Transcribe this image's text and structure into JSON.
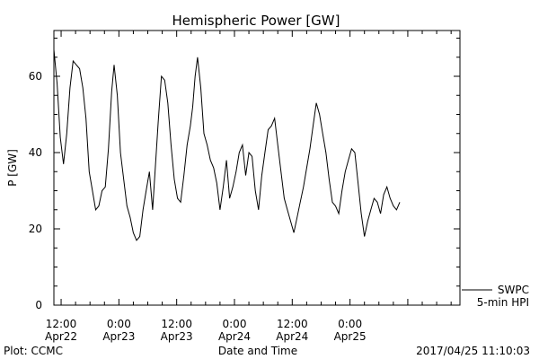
{
  "chart_data": {
    "type": "line",
    "title": "Hemispheric Power [GW]",
    "xlabel": "Date and Time",
    "ylabel": "P [GW]",
    "ylim": [
      0,
      72
    ],
    "yticks": [
      0,
      20,
      40,
      60
    ],
    "xlim": [
      "2017-04-22T10:30",
      "2017-04-25T22:50"
    ],
    "x_ticks": [
      {
        "time": "2017-04-22T12:00",
        "label1": "12:00",
        "label2": "Apr22"
      },
      {
        "time": "2017-04-23T00:00",
        "label1": "0:00",
        "label2": "Apr23"
      },
      {
        "time": "2017-04-23T12:00",
        "label1": "12:00",
        "label2": "Apr23"
      },
      {
        "time": "2017-04-24T00:00",
        "label1": "0:00",
        "label2": "Apr24"
      },
      {
        "time": "2017-04-24T12:00",
        "label1": "12:00",
        "label2": "Apr24"
      },
      {
        "time": "2017-04-25T00:00",
        "label1": "0:00",
        "label2": "Apr25"
      }
    ],
    "grid": false,
    "legend": {
      "position": "bottom-right",
      "line1": "SWPC",
      "line2": "5-min HPI"
    },
    "series": [
      {
        "name": "SWPC",
        "color": "#000000",
        "points": [
          [
            "2017-04-22T10:30",
            67
          ],
          [
            "2017-04-22T11:10",
            58
          ],
          [
            "2017-04-22T11:50",
            44
          ],
          [
            "2017-04-22T12:30",
            37
          ],
          [
            "2017-04-22T13:10",
            45
          ],
          [
            "2017-04-22T13:50",
            57
          ],
          [
            "2017-04-22T14:30",
            64
          ],
          [
            "2017-04-22T15:10",
            63
          ],
          [
            "2017-04-22T15:50",
            62
          ],
          [
            "2017-04-22T16:30",
            57
          ],
          [
            "2017-04-22T17:10",
            49
          ],
          [
            "2017-04-22T17:50",
            35
          ],
          [
            "2017-04-22T18:30",
            30
          ],
          [
            "2017-04-22T19:10",
            25
          ],
          [
            "2017-04-22T19:50",
            26
          ],
          [
            "2017-04-22T20:30",
            30
          ],
          [
            "2017-04-22T21:10",
            31
          ],
          [
            "2017-04-22T21:50",
            41
          ],
          [
            "2017-04-22T22:30",
            56
          ],
          [
            "2017-04-22T23:00",
            63
          ],
          [
            "2017-04-22T23:40",
            55
          ],
          [
            "2017-04-23T00:20",
            40
          ],
          [
            "2017-04-23T01:00",
            33
          ],
          [
            "2017-04-23T01:40",
            26
          ],
          [
            "2017-04-23T02:20",
            23
          ],
          [
            "2017-04-23T03:00",
            19
          ],
          [
            "2017-04-23T03:40",
            17
          ],
          [
            "2017-04-23T04:20",
            18
          ],
          [
            "2017-04-23T05:00",
            25
          ],
          [
            "2017-04-23T05:40",
            30
          ],
          [
            "2017-04-23T06:20",
            35
          ],
          [
            "2017-04-23T07:00",
            25
          ],
          [
            "2017-04-23T07:30",
            35
          ],
          [
            "2017-04-23T08:10",
            48
          ],
          [
            "2017-04-23T08:50",
            60
          ],
          [
            "2017-04-23T09:30",
            59
          ],
          [
            "2017-04-23T10:10",
            53
          ],
          [
            "2017-04-23T10:50",
            42
          ],
          [
            "2017-04-23T11:30",
            33
          ],
          [
            "2017-04-23T12:10",
            28
          ],
          [
            "2017-04-23T12:50",
            27
          ],
          [
            "2017-04-23T13:30",
            34
          ],
          [
            "2017-04-23T14:10",
            42
          ],
          [
            "2017-04-23T14:50",
            47
          ],
          [
            "2017-04-23T15:20",
            52
          ],
          [
            "2017-04-23T15:50",
            60
          ],
          [
            "2017-04-23T16:20",
            65
          ],
          [
            "2017-04-23T17:00",
            57
          ],
          [
            "2017-04-23T17:40",
            45
          ],
          [
            "2017-04-23T18:20",
            42
          ],
          [
            "2017-04-23T19:00",
            38
          ],
          [
            "2017-04-23T19:40",
            36
          ],
          [
            "2017-04-23T20:20",
            32
          ],
          [
            "2017-04-23T21:00",
            25
          ],
          [
            "2017-04-23T21:40",
            31
          ],
          [
            "2017-04-23T22:20",
            38
          ],
          [
            "2017-04-23T23:00",
            28
          ],
          [
            "2017-04-23T23:40",
            31
          ],
          [
            "2017-04-24T00:20",
            35
          ],
          [
            "2017-04-24T01:00",
            40
          ],
          [
            "2017-04-24T01:40",
            42
          ],
          [
            "2017-04-24T02:20",
            34
          ],
          [
            "2017-04-24T03:00",
            40
          ],
          [
            "2017-04-24T03:40",
            39
          ],
          [
            "2017-04-24T04:20",
            30
          ],
          [
            "2017-04-24T05:00",
            25
          ],
          [
            "2017-04-24T05:40",
            34
          ],
          [
            "2017-04-24T06:20",
            40
          ],
          [
            "2017-04-24T07:00",
            46
          ],
          [
            "2017-04-24T07:40",
            47
          ],
          [
            "2017-04-24T08:20",
            49
          ],
          [
            "2017-04-24T09:00",
            42
          ],
          [
            "2017-04-24T09:40",
            35
          ],
          [
            "2017-04-24T10:20",
            28
          ],
          [
            "2017-04-24T11:00",
            25
          ],
          [
            "2017-04-24T11:40",
            22
          ],
          [
            "2017-04-24T12:20",
            19
          ],
          [
            "2017-04-24T13:00",
            23
          ],
          [
            "2017-04-24T13:40",
            27
          ],
          [
            "2017-04-24T14:20",
            31
          ],
          [
            "2017-04-24T15:00",
            36
          ],
          [
            "2017-04-24T15:40",
            41
          ],
          [
            "2017-04-24T16:20",
            47
          ],
          [
            "2017-04-24T17:00",
            53
          ],
          [
            "2017-04-24T17:40",
            50
          ],
          [
            "2017-04-24T18:20",
            45
          ],
          [
            "2017-04-24T19:00",
            40
          ],
          [
            "2017-04-24T19:40",
            33
          ],
          [
            "2017-04-24T20:20",
            27
          ],
          [
            "2017-04-24T21:00",
            26
          ],
          [
            "2017-04-24T21:40",
            24
          ],
          [
            "2017-04-24T22:20",
            30
          ],
          [
            "2017-04-24T23:00",
            35
          ],
          [
            "2017-04-24T23:40",
            38
          ],
          [
            "2017-04-25T00:20",
            41
          ],
          [
            "2017-04-25T01:00",
            40
          ],
          [
            "2017-04-25T01:40",
            32
          ],
          [
            "2017-04-25T02:20",
            24
          ],
          [
            "2017-04-25T03:00",
            18
          ],
          [
            "2017-04-25T03:40",
            22
          ],
          [
            "2017-04-25T04:20",
            25
          ],
          [
            "2017-04-25T05:00",
            28
          ],
          [
            "2017-04-25T05:40",
            27
          ],
          [
            "2017-04-25T06:20",
            24
          ],
          [
            "2017-04-25T07:00",
            29
          ],
          [
            "2017-04-25T07:40",
            31
          ],
          [
            "2017-04-25T08:20",
            28
          ],
          [
            "2017-04-25T09:00",
            26
          ],
          [
            "2017-04-25T09:40",
            25
          ],
          [
            "2017-04-25T10:20",
            27
          ]
        ]
      }
    ]
  },
  "footer": {
    "left": "Plot: CCMC",
    "center": "Date and Time",
    "right": "2017/04/25 11:10:03"
  }
}
